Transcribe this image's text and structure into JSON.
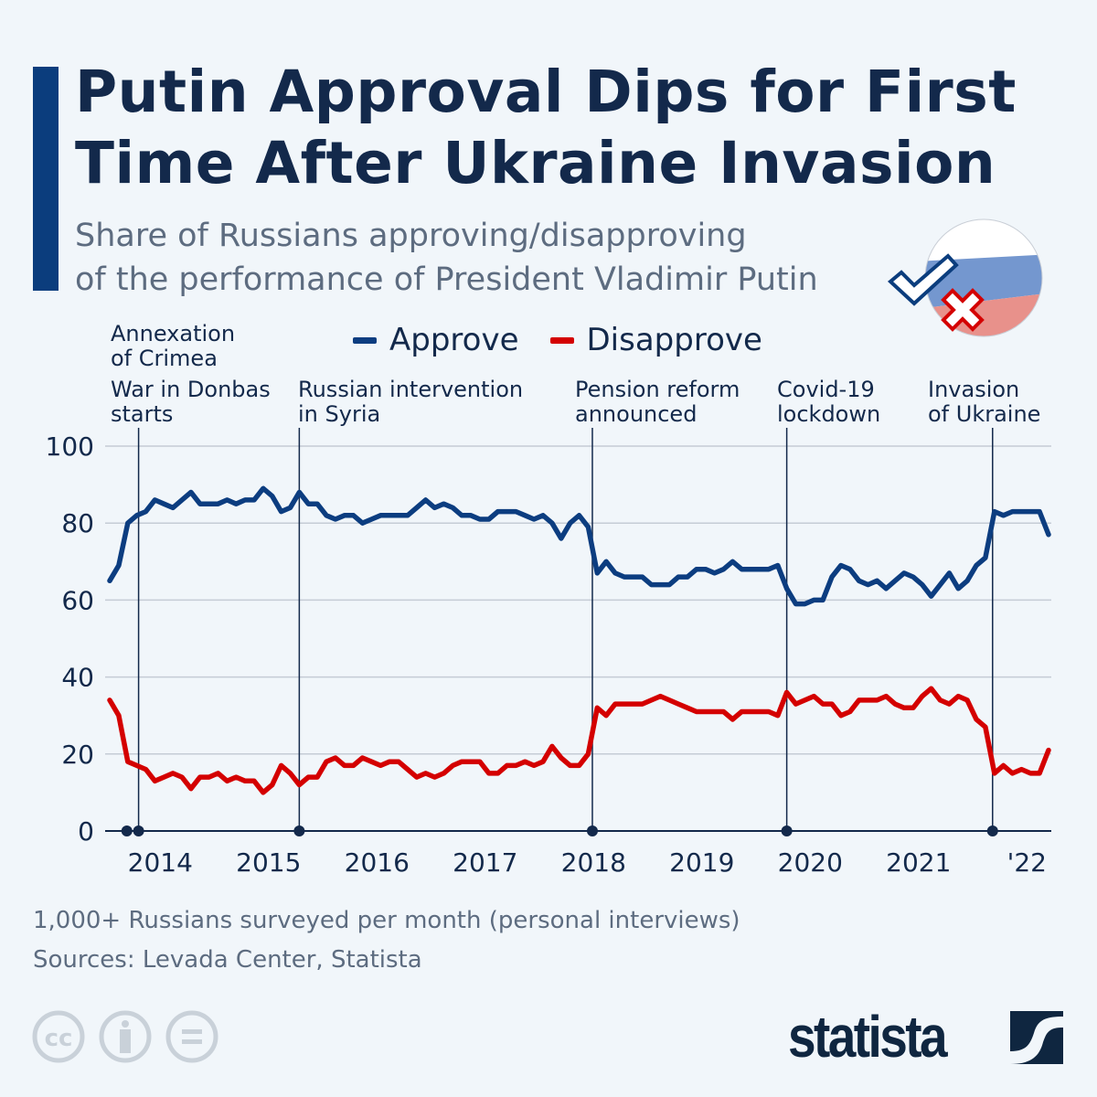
{
  "header": {
    "title_lines": [
      "Putin Approval Dips for First",
      "Time After Ukraine Invasion"
    ],
    "subtitle_lines": [
      "Share of Russians approving/disapproving",
      "of the performance of President Vladimir Putin"
    ],
    "icon": "russia-flag-check-cross-icon"
  },
  "colors": {
    "accent": "#0b3d7d",
    "approve": "#0c3d80",
    "disapprove": "#d40000",
    "background": "#f1f6fa",
    "title": "#13294b"
  },
  "chart_data": {
    "type": "line",
    "title": "Putin Approval Dips for First Time After Ukraine Invasion",
    "subtitle": "Share of Russians approving/disapproving of the performance of President Vladimir Putin",
    "x_start": "2014-01",
    "x_end": "2022-09",
    "x_frequency": "monthly",
    "x_tick_labels": [
      "2014",
      "2015",
      "2016",
      "2017",
      "2018",
      "2019",
      "2020",
      "2021",
      "'22"
    ],
    "ylim": [
      0,
      100
    ],
    "y_ticks": [
      0,
      20,
      40,
      60,
      80,
      100
    ],
    "grid": true,
    "legend_position": "top",
    "series": [
      {
        "name": "Approve",
        "color": "#0c3d80",
        "values": [
          65,
          69,
          80,
          82,
          83,
          86,
          85,
          84,
          86,
          88,
          85,
          85,
          85,
          86,
          85,
          86,
          86,
          89,
          87,
          83,
          84,
          88,
          85,
          85,
          82,
          81,
          82,
          82,
          80,
          81,
          82,
          82,
          82,
          82,
          84,
          86,
          84,
          85,
          84,
          82,
          82,
          81,
          81,
          83,
          83,
          83,
          82,
          81,
          82,
          80,
          76,
          80,
          82,
          79,
          67,
          70,
          67,
          66,
          66,
          66,
          64,
          64,
          64,
          66,
          66,
          68,
          68,
          67,
          68,
          70,
          68,
          68,
          68,
          68,
          69,
          63,
          59,
          59,
          60,
          60,
          66,
          69,
          68,
          65,
          64,
          65,
          63,
          65,
          67,
          66,
          64,
          61,
          64,
          67,
          63,
          65,
          69,
          71,
          83,
          82,
          83,
          83,
          83,
          83,
          77
        ]
      },
      {
        "name": "Disapprove",
        "color": "#d40000",
        "values": [
          34,
          30,
          18,
          17,
          16,
          13,
          14,
          15,
          14,
          11,
          14,
          14,
          15,
          13,
          14,
          13,
          13,
          10,
          12,
          17,
          15,
          12,
          14,
          14,
          18,
          19,
          17,
          17,
          19,
          18,
          17,
          18,
          18,
          16,
          14,
          15,
          14,
          15,
          17,
          18,
          18,
          18,
          15,
          15,
          17,
          17,
          18,
          17,
          18,
          22,
          19,
          17,
          17,
          20,
          32,
          30,
          33,
          33,
          33,
          33,
          34,
          35,
          34,
          33,
          32,
          31,
          31,
          31,
          31,
          29,
          31,
          31,
          31,
          31,
          30,
          36,
          33,
          34,
          35,
          33,
          33,
          30,
          31,
          34,
          34,
          34,
          35,
          33,
          32,
          32,
          35,
          37,
          34,
          33,
          35,
          34,
          29,
          27,
          15,
          17,
          15,
          16,
          15,
          15,
          21
        ]
      }
    ],
    "annotations": [
      {
        "label_lines": [
          "Annexation",
          "of Crimea"
        ],
        "date": "2014-02-27",
        "line": false
      },
      {
        "label_lines": [
          "War in Donbas",
          "starts"
        ],
        "date": "2014-04-06",
        "line": true
      },
      {
        "label_lines": [
          "Russian intervention",
          "in Syria"
        ],
        "date": "2015-09-30",
        "line": true
      },
      {
        "label_lines": [
          "Pension reform",
          "announced"
        ],
        "date": "2018-06-14",
        "line": true
      },
      {
        "label_lines": [
          "Covid-19",
          "lockdown"
        ],
        "date": "2020-03-30",
        "line": true
      },
      {
        "label_lines": [
          "Invasion",
          "of Ukraine"
        ],
        "date": "2022-02-24",
        "line": true
      }
    ]
  },
  "footer": {
    "note": "1,000+ Russians surveyed per month (personal interviews)",
    "source": "Sources: Levada Center, Statista",
    "license_icons": [
      "creative-commons-icon",
      "attribution-icon",
      "no-derivatives-icon"
    ],
    "brand": "statista"
  }
}
